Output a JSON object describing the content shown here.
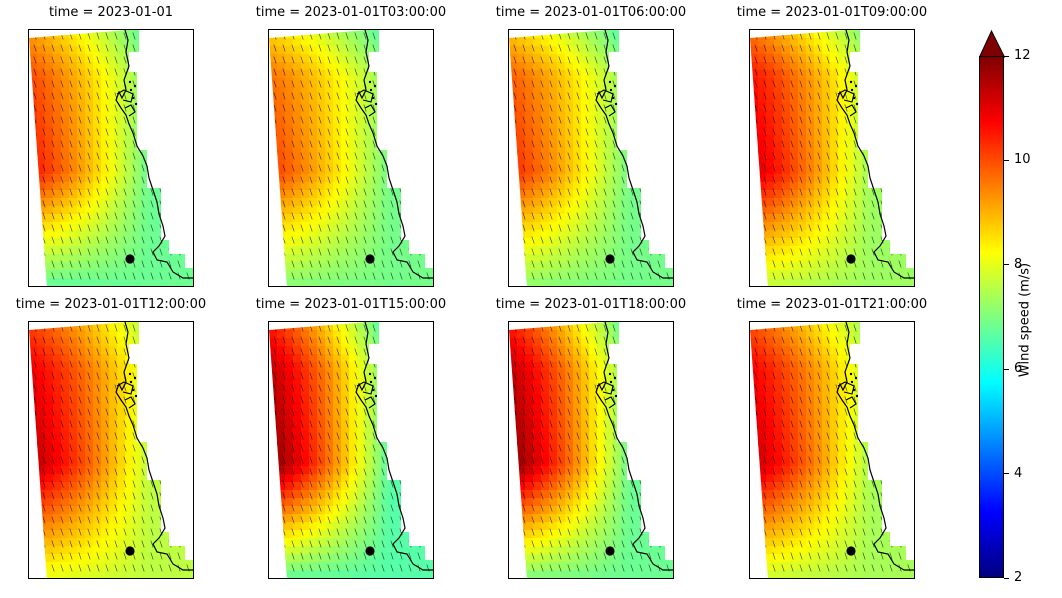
{
  "figure": {
    "panels": [
      {
        "title": "time = 2023-01-01",
        "peak": 10.6,
        "shelf": 9.6,
        "south": 6.6,
        "coast": 6.8
      },
      {
        "title": "time = 2023-01-01T03:00:00",
        "peak": 10.2,
        "shelf": 8.9,
        "south": 7.0,
        "coast": 6.9
      },
      {
        "title": "time = 2023-01-01T06:00:00",
        "peak": 10.4,
        "shelf": 9.0,
        "south": 7.1,
        "coast": 6.9
      },
      {
        "title": "time = 2023-01-01T09:00:00",
        "peak": 11.2,
        "shelf": 9.9,
        "south": 7.6,
        "coast": 7.3
      },
      {
        "title": "time = 2023-01-01T12:00:00",
        "peak": 11.5,
        "shelf": 10.6,
        "south": 8.0,
        "coast": 7.6
      },
      {
        "title": "time = 2023-01-01T15:00:00",
        "peak": 12.0,
        "shelf": 10.9,
        "south": 6.6,
        "coast": 6.6
      },
      {
        "title": "time = 2023-01-01T18:00:00",
        "peak": 12.0,
        "shelf": 10.9,
        "south": 6.9,
        "coast": 6.8
      },
      {
        "title": "time = 2023-01-01T21:00:00",
        "peak": 11.4,
        "shelf": 10.4,
        "south": 7.7,
        "coast": 7.4
      }
    ],
    "colorbar": {
      "label": "Wind speed (m/s)",
      "min": 2,
      "max": 12,
      "extend": "max",
      "ticks": [
        "2",
        "4",
        "6",
        "8",
        "10",
        "12"
      ],
      "colormap": "jet"
    },
    "marker_color": "#000000",
    "coastline_color": "#000000"
  }
}
